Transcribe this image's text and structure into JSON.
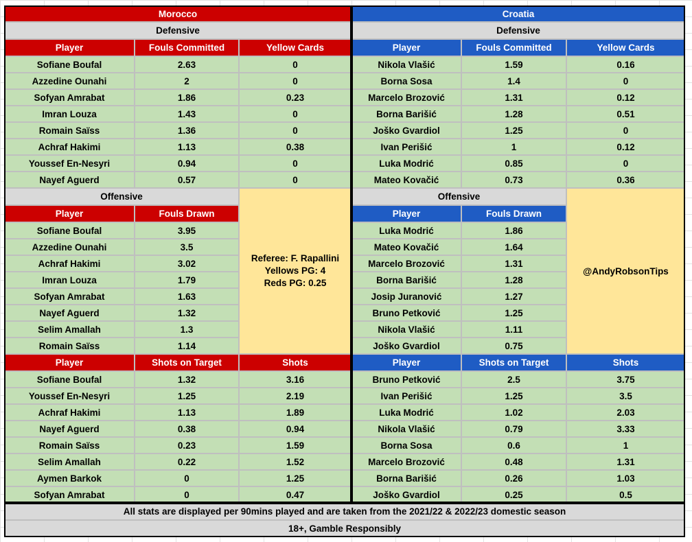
{
  "morocco": {
    "name": "Morocco",
    "defensive": {
      "title": "Defensive",
      "headers": [
        "Player",
        "Fouls Committed",
        "Yellow Cards"
      ],
      "rows": [
        [
          "Sofiane Boufal",
          "2.63",
          "0"
        ],
        [
          "Azzedine Ounahi",
          "2",
          "0"
        ],
        [
          "Sofyan Amrabat",
          "1.86",
          "0.23"
        ],
        [
          "Imran Louza",
          "1.43",
          "0"
        ],
        [
          "Romain Saïss",
          "1.36",
          "0"
        ],
        [
          "Achraf Hakimi",
          "1.13",
          "0.38"
        ],
        [
          "Youssef En-Nesyri",
          "0.94",
          "0"
        ],
        [
          "Nayef Aguerd",
          "0.57",
          "0"
        ]
      ]
    },
    "offensive": {
      "title": "Offensive",
      "headers": [
        "Player",
        "Fouls Drawn"
      ],
      "rows": [
        [
          "Sofiane Boufal",
          "3.95"
        ],
        [
          "Azzedine Ounahi",
          "3.5"
        ],
        [
          "Achraf Hakimi",
          "3.02"
        ],
        [
          "Imran Louza",
          "1.79"
        ],
        [
          "Sofyan Amrabat",
          "1.63"
        ],
        [
          "Nayef Aguerd",
          "1.32"
        ],
        [
          "Selim Amallah",
          "1.3"
        ],
        [
          "Romain Saïss",
          "1.14"
        ]
      ]
    },
    "shots": {
      "headers": [
        "Player",
        "Shots on Target",
        "Shots"
      ],
      "rows": [
        [
          "Sofiane Boufal",
          "1.32",
          "3.16"
        ],
        [
          "Youssef En-Nesyri",
          "1.25",
          "2.19"
        ],
        [
          "Achraf Hakimi",
          "1.13",
          "1.89"
        ],
        [
          "Nayef Aguerd",
          "0.38",
          "0.94"
        ],
        [
          "Romain Saïss",
          "0.23",
          "1.59"
        ],
        [
          "Selim Amallah",
          "0.22",
          "1.52"
        ],
        [
          "Aymen Barkok",
          "0",
          "1.25"
        ],
        [
          "Sofyan Amrabat",
          "0",
          "0.47"
        ]
      ]
    }
  },
  "croatia": {
    "name": "Croatia",
    "defensive": {
      "title": "Defensive",
      "headers": [
        "Player",
        "Fouls Committed",
        "Yellow Cards"
      ],
      "rows": [
        [
          "Nikola Vlašić",
          "1.59",
          "0.16"
        ],
        [
          "Borna Sosa",
          "1.4",
          "0"
        ],
        [
          "Marcelo Brozović",
          "1.31",
          "0.12"
        ],
        [
          "Borna Barišić",
          "1.28",
          "0.51"
        ],
        [
          "Joško Gvardiol",
          "1.25",
          "0"
        ],
        [
          "Ivan Perišić",
          "1",
          "0.12"
        ],
        [
          "Luka Modrić",
          "0.85",
          "0"
        ],
        [
          "Mateo Kovačić",
          "0.73",
          "0.36"
        ]
      ]
    },
    "offensive": {
      "title": "Offensive",
      "headers": [
        "Player",
        "Fouls Drawn"
      ],
      "rows": [
        [
          "Luka Modrić",
          "1.86"
        ],
        [
          "Mateo Kovačić",
          "1.64"
        ],
        [
          "Marcelo Brozović",
          "1.31"
        ],
        [
          "Borna Barišić",
          "1.28"
        ],
        [
          "Josip Juranović",
          "1.27"
        ],
        [
          "Bruno Petković",
          "1.25"
        ],
        [
          "Nikola Vlašić",
          "1.11"
        ],
        [
          "Joško Gvardiol",
          "0.75"
        ]
      ]
    },
    "shots": {
      "headers": [
        "Player",
        "Shots on Target",
        "Shots"
      ],
      "rows": [
        [
          "Bruno Petković",
          "2.5",
          "3.75"
        ],
        [
          "Ivan Perišić",
          "1.25",
          "3.5"
        ],
        [
          "Luka Modrić",
          "1.02",
          "2.03"
        ],
        [
          "Nikola Vlašić",
          "0.79",
          "3.33"
        ],
        [
          "Borna Sosa",
          "0.6",
          "1"
        ],
        [
          "Marcelo Brozović",
          "0.48",
          "1.31"
        ],
        [
          "Borna Barišić",
          "0.26",
          "1.03"
        ],
        [
          "Joško Gvardiol",
          "0.25",
          "0.5"
        ]
      ]
    }
  },
  "referee": {
    "line1": "Referee: F. Rapallini",
    "line2": "Yellows PG: 4",
    "line3": "Reds PG: 0.25"
  },
  "handle": "@AndyRobsonTips",
  "footer": {
    "note": "All stats are displayed per 90mins played and are taken from the 2021/22 & 2022/23 domestic season",
    "disclaimer": "18+, Gamble Responsibly"
  },
  "colors": {
    "morocco_header": "#cc0000",
    "croatia_header": "#1f5cc4",
    "section_grey": "#d9d9d9",
    "data_green": "#c3dfb5",
    "info_yellow": "#ffe699"
  }
}
